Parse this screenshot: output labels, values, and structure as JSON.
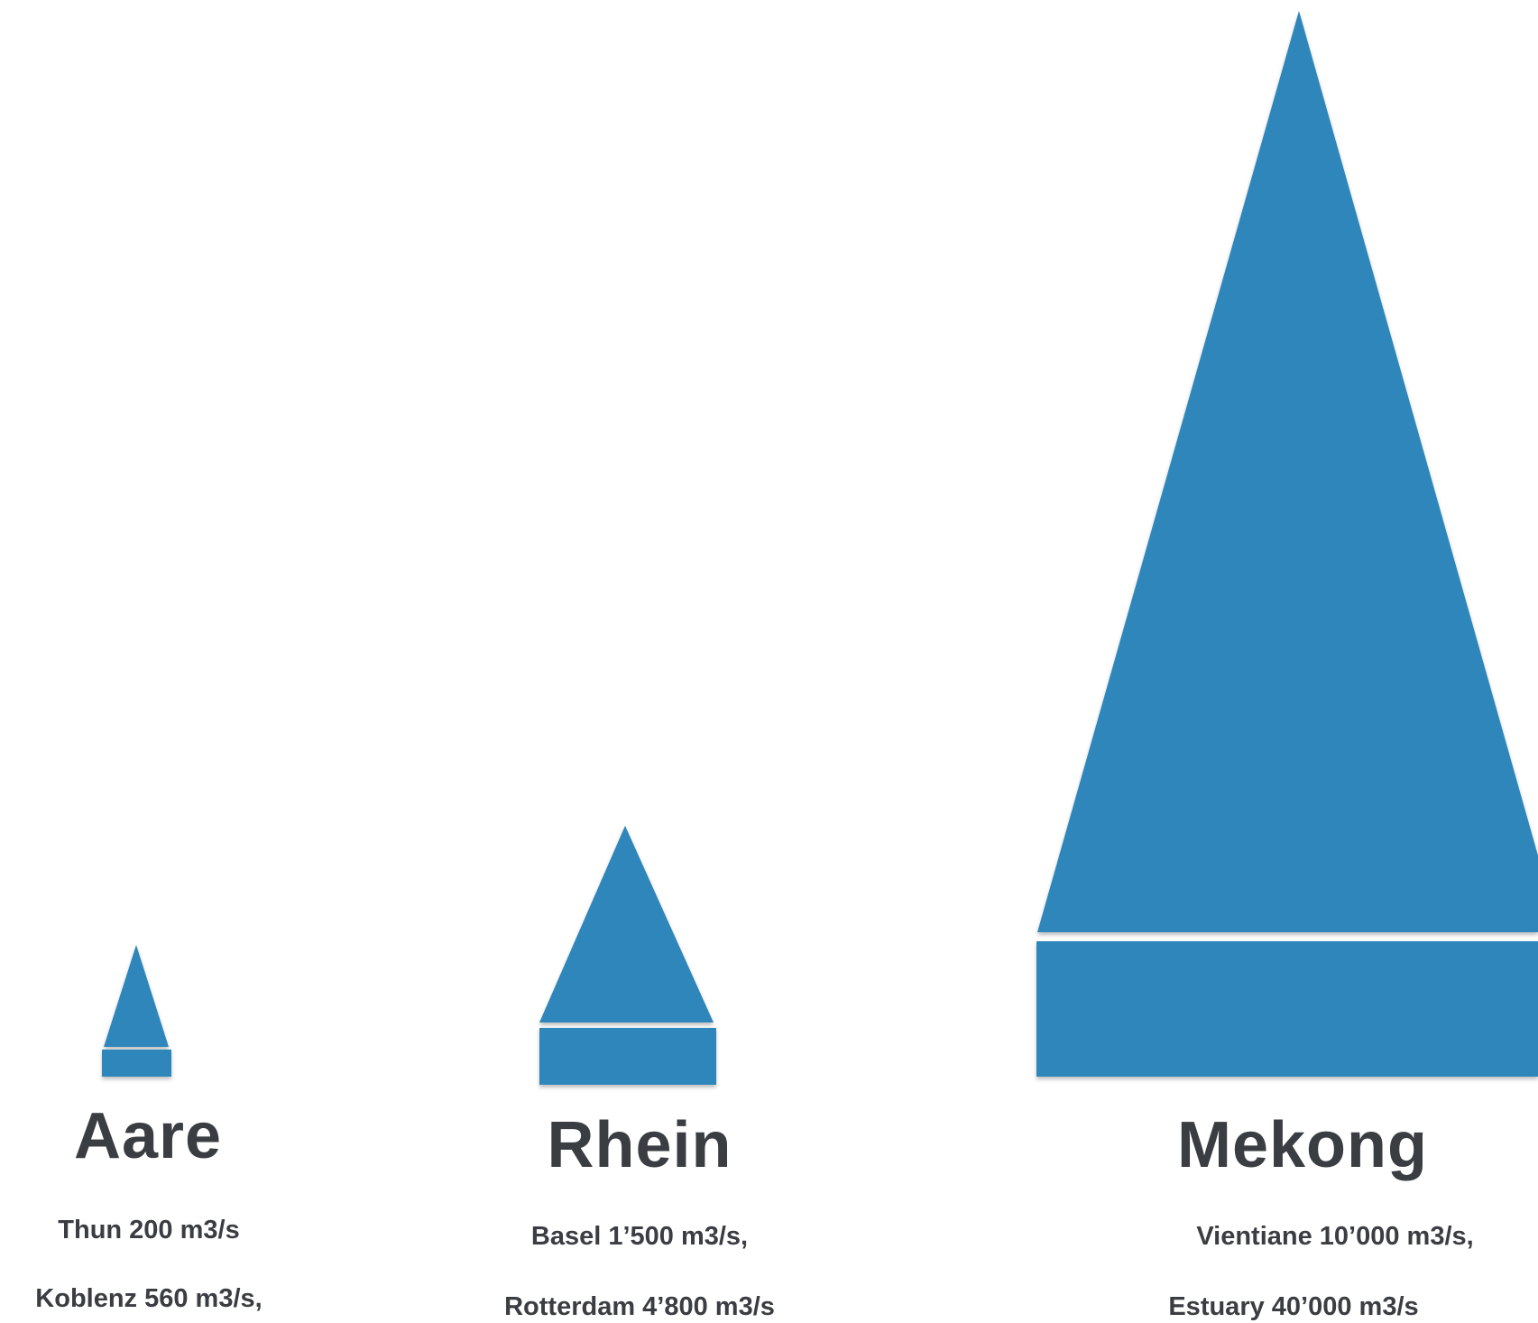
{
  "colors": {
    "shape_fill": "#2f86ba",
    "text": "#3a3d42",
    "background": "#ffffff"
  },
  "rivers": [
    {
      "name": "Aare",
      "stations": [
        "Thun 200 m3/s",
        "Koblenz 560 m3/s,"
      ]
    },
    {
      "name": "Rhein",
      "stations": [
        "Basel 1’500 m3/s,",
        "Rotterdam 4’800 m3/s"
      ]
    },
    {
      "name": "Mekong",
      "stations": [
        "Vientiane 10’000 m3/s,",
        "Estuary 40’000 m3/s"
      ]
    }
  ]
}
